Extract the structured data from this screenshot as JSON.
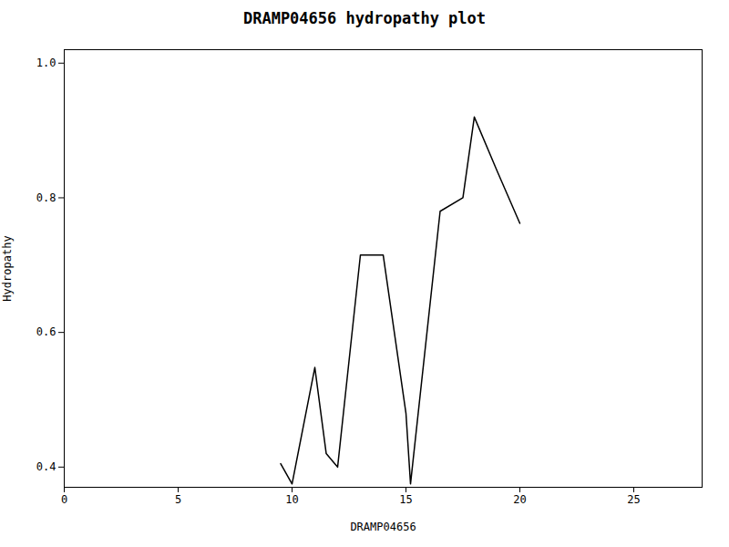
{
  "chart_data": {
    "type": "line",
    "title": "DRAMP04656 hydropathy plot",
    "xlabel": "DRAMP04656",
    "ylabel": "Hydropathy",
    "x": [
      9.5,
      10.0,
      11.0,
      11.5,
      12.0,
      13.0,
      14.0,
      15.0,
      15.2,
      16.5,
      17.5,
      18.0,
      19.0,
      20.0
    ],
    "values": [
      0.405,
      0.375,
      0.548,
      0.42,
      0.4,
      0.715,
      0.715,
      0.48,
      0.375,
      0.78,
      0.8,
      0.92,
      0.84,
      0.762
    ],
    "color": "#000000",
    "xlim": [
      0,
      28
    ],
    "ylim": [
      0.37,
      1.02
    ],
    "xticks": [
      0,
      5,
      10,
      15,
      20,
      25
    ],
    "yticks": [
      0.4,
      0.6,
      0.8,
      {
        "value": 1.0,
        "label": "1.0"
      }
    ],
    "grid": false
  }
}
